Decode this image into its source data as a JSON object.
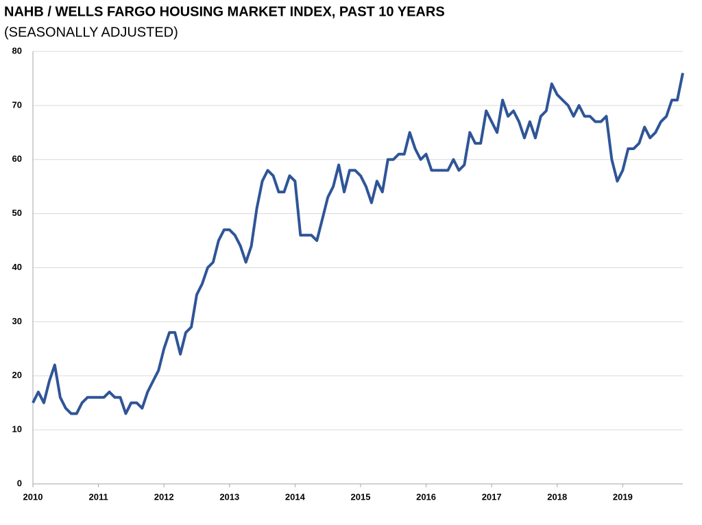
{
  "chart_data": {
    "type": "line",
    "title": "NAHB / WELLS FARGO HOUSING MARKET INDEX, PAST 10 YEARS",
    "subtitle": "(SEASONALLY ADJUSTED)",
    "x": [
      2010,
      2010.083,
      2010.167,
      2010.25,
      2010.333,
      2010.417,
      2010.5,
      2010.583,
      2010.667,
      2010.75,
      2010.833,
      2010.917,
      2011,
      2011.083,
      2011.167,
      2011.25,
      2011.333,
      2011.417,
      2011.5,
      2011.583,
      2011.667,
      2011.75,
      2011.833,
      2011.917,
      2012,
      2012.083,
      2012.167,
      2012.25,
      2012.333,
      2012.417,
      2012.5,
      2012.583,
      2012.667,
      2012.75,
      2012.833,
      2012.917,
      2013,
      2013.083,
      2013.167,
      2013.25,
      2013.333,
      2013.417,
      2013.5,
      2013.583,
      2013.667,
      2013.75,
      2013.833,
      2013.917,
      2014,
      2014.083,
      2014.167,
      2014.25,
      2014.333,
      2014.417,
      2014.5,
      2014.583,
      2014.667,
      2014.75,
      2014.833,
      2014.917,
      2015,
      2015.083,
      2015.167,
      2015.25,
      2015.333,
      2015.417,
      2015.5,
      2015.583,
      2015.667,
      2015.75,
      2015.833,
      2015.917,
      2016,
      2016.083,
      2016.167,
      2016.25,
      2016.333,
      2016.417,
      2016.5,
      2016.583,
      2016.667,
      2016.75,
      2016.833,
      2016.917,
      2017,
      2017.083,
      2017.167,
      2017.25,
      2017.333,
      2017.417,
      2017.5,
      2017.583,
      2017.667,
      2017.75,
      2017.833,
      2017.917,
      2018,
      2018.083,
      2018.167,
      2018.25,
      2018.333,
      2018.417,
      2018.5,
      2018.583,
      2018.667,
      2018.75,
      2018.833,
      2018.917,
      2019,
      2019.083,
      2019.167,
      2019.25,
      2019.333,
      2019.417,
      2019.5,
      2019.583,
      2019.667,
      2019.75,
      2019.833,
      2019.917
    ],
    "series": [
      {
        "color": "#2f5597",
        "values": [
          15,
          17,
          15,
          19,
          22,
          16,
          14,
          13,
          13,
          15,
          16,
          16,
          16,
          16,
          17,
          16,
          16,
          13,
          15,
          15,
          14,
          17,
          19,
          21,
          25,
          28,
          28,
          24,
          28,
          29,
          35,
          37,
          40,
          41,
          45,
          47,
          47,
          46,
          44,
          41,
          44,
          51,
          56,
          58,
          57,
          54,
          54,
          57,
          56,
          46,
          46,
          46,
          45,
          49,
          53,
          55,
          59,
          54,
          58,
          58,
          57,
          55,
          52,
          56,
          54,
          60,
          60,
          61,
          61,
          65,
          62,
          60,
          61,
          58,
          58,
          58,
          58,
          60,
          58,
          59,
          65,
          63,
          63,
          69,
          67,
          65,
          71,
          68,
          69,
          67,
          64,
          67,
          64,
          68,
          69,
          74,
          72,
          71,
          70,
          68,
          70,
          68,
          68,
          67,
          67,
          68,
          60,
          56,
          58,
          62,
          62,
          63,
          66,
          64,
          65,
          67,
          68,
          71,
          71,
          76
        ]
      }
    ],
    "xlim": [
      2010,
      2019.917
    ],
    "xticks": [
      2010,
      2011,
      2012,
      2013,
      2014,
      2015,
      2016,
      2017,
      2018,
      2019
    ],
    "ylim": [
      0,
      80
    ],
    "yticks": [
      0,
      10,
      20,
      30,
      40,
      50,
      60,
      70,
      80
    ],
    "grid": true
  }
}
